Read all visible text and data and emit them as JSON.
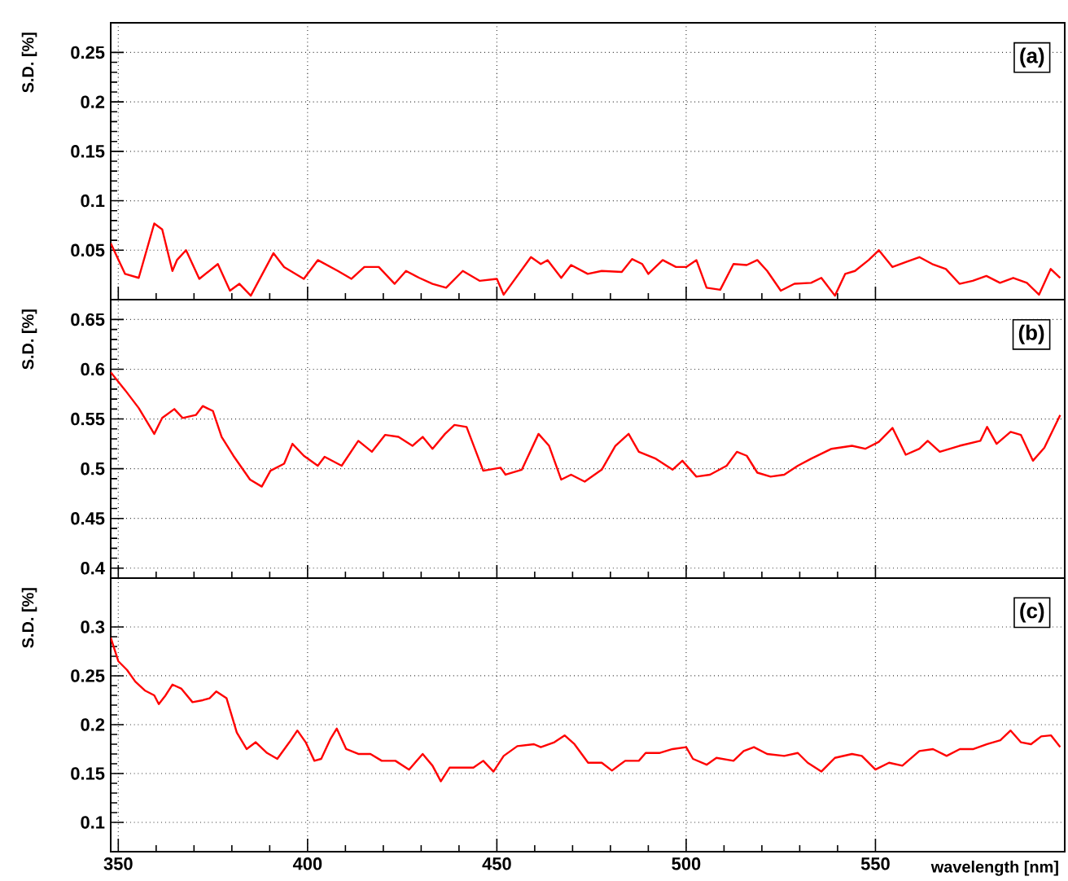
{
  "chart_data": [
    {
      "type": "line",
      "ylabel": "S.D. [%]",
      "annotations": [
        "(a)"
      ],
      "xlim": [
        348,
        600
      ],
      "ylim": [
        0,
        0.28
      ],
      "xticks": [
        350,
        400,
        450,
        500,
        550
      ],
      "yticks": [
        0.05,
        0.1,
        0.15,
        0.2,
        0.25
      ],
      "grid": true,
      "tick_labels": "y",
      "x": [
        348,
        351.8,
        355.4,
        359.5,
        361.6,
        364.3,
        365.5,
        367.9,
        371.4,
        376.3,
        379.5,
        382,
        385,
        391,
        393.8,
        399,
        402.7,
        408,
        411.6,
        415,
        418.8,
        423,
        426,
        429.5,
        433,
        436.6,
        441,
        445.5,
        450,
        451.8,
        459,
        461.6,
        463.4,
        467,
        469.6,
        474,
        477.7,
        483,
        485.7,
        488.4,
        490,
        493.8,
        497.3,
        500,
        502.7,
        505.4,
        509,
        512.5,
        516,
        518.8,
        521.4,
        525,
        528.6,
        533,
        535.7,
        539.3,
        542,
        544.6,
        548.2,
        550.9,
        554.5,
        558,
        561.6,
        565,
        568.6,
        572.2,
        575.7,
        579.3,
        582.9,
        586.4,
        590,
        593.2,
        596.3,
        598.8
      ],
      "series": [
        {
          "color": "#ff0000",
          "values": [
            0.057,
            0.026,
            0.022,
            0.077,
            0.071,
            0.029,
            0.04,
            0.05,
            0.021,
            0.036,
            0.009,
            0.016,
            0.004,
            0.047,
            0.033,
            0.021,
            0.04,
            0.029,
            0.021,
            0.033,
            0.033,
            0.016,
            0.029,
            0.022,
            0.016,
            0.012,
            0.029,
            0.019,
            0.021,
            0.005,
            0.043,
            0.036,
            0.04,
            0.022,
            0.035,
            0.026,
            0.029,
            0.028,
            0.041,
            0.036,
            0.026,
            0.04,
            0.033,
            0.033,
            0.04,
            0.012,
            0.01,
            0.036,
            0.035,
            0.04,
            0.029,
            0.009,
            0.016,
            0.017,
            0.022,
            0.004,
            0.026,
            0.029,
            0.04,
            0.05,
            0.033,
            0.038,
            0.043,
            0.036,
            0.031,
            0.016,
            0.019,
            0.024,
            0.017,
            0.022,
            0.017,
            0.005,
            0.031,
            0.022
          ]
        }
      ]
    },
    {
      "type": "line",
      "ylabel": "S.D. [%]",
      "annotations": [
        "(b)"
      ],
      "xlim": [
        348,
        600
      ],
      "ylim": [
        0.39,
        0.67
      ],
      "xticks": [
        350,
        400,
        450,
        500,
        550
      ],
      "yticks": [
        0.4,
        0.45,
        0.5,
        0.55,
        0.6,
        0.65
      ],
      "grid": true,
      "tick_labels": "y",
      "x": [
        348,
        351.8,
        355.4,
        359.5,
        361.6,
        364.8,
        367,
        370.5,
        372.3,
        375,
        377.3,
        380.4,
        384.8,
        387.9,
        390.2,
        393.8,
        396,
        399,
        402.7,
        404.5,
        409,
        413.4,
        417,
        420.5,
        424,
        427.7,
        430.4,
        433,
        436.3,
        438.8,
        442,
        446.4,
        451,
        452.3,
        456.6,
        461,
        463.8,
        467,
        469.6,
        473.2,
        477.7,
        481.3,
        484.8,
        487.5,
        492,
        496.4,
        499,
        502.7,
        506.3,
        510.7,
        513.4,
        516,
        518.8,
        522.3,
        525.9,
        529.5,
        533,
        538.4,
        543.8,
        547.3,
        550.9,
        554.5,
        558,
        561.6,
        563.8,
        567,
        572.2,
        577.7,
        579.5,
        582,
        585.7,
        588.4,
        591.6,
        594.6,
        598.8
      ],
      "series": [
        {
          "color": "#ff0000",
          "values": [
            0.597,
            0.579,
            0.561,
            0.535,
            0.551,
            0.56,
            0.551,
            0.554,
            0.563,
            0.558,
            0.532,
            0.513,
            0.489,
            0.482,
            0.498,
            0.505,
            0.525,
            0.513,
            0.503,
            0.512,
            0.503,
            0.528,
            0.517,
            0.534,
            0.532,
            0.523,
            0.532,
            0.52,
            0.535,
            0.544,
            0.542,
            0.498,
            0.501,
            0.494,
            0.499,
            0.535,
            0.523,
            0.489,
            0.494,
            0.487,
            0.499,
            0.523,
            0.535,
            0.517,
            0.51,
            0.499,
            0.508,
            0.492,
            0.494,
            0.503,
            0.517,
            0.513,
            0.496,
            0.492,
            0.494,
            0.503,
            0.51,
            0.52,
            0.523,
            0.52,
            0.527,
            0.541,
            0.514,
            0.52,
            0.528,
            0.517,
            0.523,
            0.528,
            0.542,
            0.525,
            0.537,
            0.534,
            0.508,
            0.521,
            0.554
          ]
        }
      ]
    },
    {
      "type": "line",
      "ylabel": "S.D. [%]",
      "xlabel": "wavelength [nm]",
      "annotations": [
        "(c)"
      ],
      "xlim": [
        348,
        600
      ],
      "ylim": [
        0.07,
        0.35
      ],
      "xticks": [
        350,
        400,
        450,
        500,
        550
      ],
      "yticks": [
        0.1,
        0.15,
        0.2,
        0.25,
        0.3
      ],
      "grid": true,
      "x": [
        348,
        350,
        352.3,
        354.5,
        357,
        359.5,
        360.7,
        362.5,
        364.3,
        366.6,
        369.6,
        372.3,
        374.1,
        375.9,
        378.6,
        381.3,
        383.9,
        386.3,
        389.3,
        392,
        395.2,
        397.3,
        399.5,
        401.8,
        403.6,
        406,
        407.7,
        410.2,
        413.4,
        416.6,
        419.6,
        423.2,
        426.8,
        430.4,
        433,
        435.2,
        437.5,
        441,
        443.8,
        446.4,
        449.1,
        451.8,
        455.4,
        459.8,
        461.6,
        465.2,
        467.9,
        470.5,
        474.1,
        477.7,
        480.4,
        483.9,
        487.5,
        489.3,
        492.9,
        496.4,
        500,
        501.8,
        505.4,
        508,
        512.5,
        515.2,
        517.9,
        521.4,
        525.9,
        529.5,
        532.1,
        535.7,
        539.3,
        543.8,
        546.4,
        550,
        553.6,
        557.1,
        561.6,
        565.2,
        568.8,
        572.3,
        575.9,
        579.5,
        583,
        585.7,
        588.4,
        591.1,
        593.8,
        596.4,
        598.8
      ],
      "series": [
        {
          "color": "#ff0000",
          "values": [
            0.289,
            0.265,
            0.256,
            0.244,
            0.235,
            0.23,
            0.221,
            0.23,
            0.241,
            0.237,
            0.223,
            0.225,
            0.227,
            0.234,
            0.227,
            0.192,
            0.175,
            0.182,
            0.171,
            0.165,
            0.182,
            0.194,
            0.182,
            0.163,
            0.165,
            0.185,
            0.196,
            0.175,
            0.17,
            0.17,
            0.163,
            0.163,
            0.154,
            0.17,
            0.158,
            0.142,
            0.156,
            0.156,
            0.156,
            0.163,
            0.152,
            0.168,
            0.178,
            0.18,
            0.177,
            0.182,
            0.189,
            0.18,
            0.161,
            0.161,
            0.153,
            0.163,
            0.163,
            0.171,
            0.171,
            0.175,
            0.177,
            0.165,
            0.159,
            0.166,
            0.163,
            0.173,
            0.177,
            0.17,
            0.168,
            0.171,
            0.161,
            0.152,
            0.166,
            0.17,
            0.168,
            0.154,
            0.161,
            0.158,
            0.173,
            0.175,
            0.168,
            0.175,
            0.175,
            0.18,
            0.184,
            0.194,
            0.182,
            0.18,
            0.188,
            0.189,
            0.177
          ]
        }
      ]
    }
  ]
}
